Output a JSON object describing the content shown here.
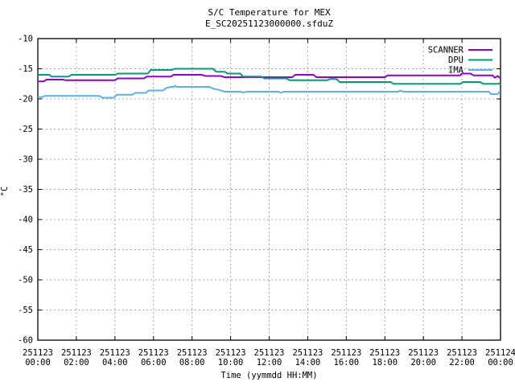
{
  "chart_data": {
    "type": "line",
    "title": "S/C Temperature for MEX",
    "subtitle": "E_SC20251123000000.sfduZ",
    "xlabel": "Time (yymmdd HH:MM)",
    "ylabel": "°C",
    "xlim": [
      0,
      24
    ],
    "ylim": [
      -60,
      -10
    ],
    "x_unit_hours_from": "251123 00:00",
    "grid": true,
    "legend_position": "top-right-inside",
    "colors": {
      "axis": "#000000",
      "grid": "#a9a9a9",
      "background": "#ffffff"
    },
    "yticks": [
      -10,
      -15,
      -20,
      -25,
      -30,
      -35,
      -40,
      -45,
      -50,
      -55,
      -60
    ],
    "xticks": [
      {
        "date": "251123",
        "time": "00:00",
        "hour": 0
      },
      {
        "date": "251123",
        "time": "02:00",
        "hour": 2
      },
      {
        "date": "251123",
        "time": "04:00",
        "hour": 4
      },
      {
        "date": "251123",
        "time": "06:00",
        "hour": 6
      },
      {
        "date": "251123",
        "time": "08:00",
        "hour": 8
      },
      {
        "date": "251123",
        "time": "10:00",
        "hour": 10
      },
      {
        "date": "251123",
        "time": "12:00",
        "hour": 12
      },
      {
        "date": "251123",
        "time": "14:00",
        "hour": 14
      },
      {
        "date": "251123",
        "time": "16:00",
        "hour": 16
      },
      {
        "date": "251123",
        "time": "18:00",
        "hour": 18
      },
      {
        "date": "251123",
        "time": "20:00",
        "hour": 20
      },
      {
        "date": "251123",
        "time": "22:00",
        "hour": 22
      },
      {
        "date": "251124",
        "time": "00:00",
        "hour": 24
      }
    ],
    "series": [
      {
        "name": "SCANNER",
        "color": "#9400d3",
        "points": [
          [
            0,
            -17.1
          ],
          [
            0.3,
            -17.1
          ],
          [
            0.45,
            -16.8
          ],
          [
            1.3,
            -16.8
          ],
          [
            1.45,
            -16.9
          ],
          [
            4.0,
            -16.9
          ],
          [
            4.15,
            -16.6
          ],
          [
            5.5,
            -16.6
          ],
          [
            5.65,
            -16.3
          ],
          [
            6.9,
            -16.3
          ],
          [
            7.05,
            -16.0
          ],
          [
            8.5,
            -16.0
          ],
          [
            8.7,
            -16.2
          ],
          [
            9.5,
            -16.2
          ],
          [
            9.7,
            -16.4
          ],
          [
            13.2,
            -16.4
          ],
          [
            13.35,
            -16.0
          ],
          [
            14.3,
            -16.0
          ],
          [
            14.45,
            -16.4
          ],
          [
            18.0,
            -16.4
          ],
          [
            18.15,
            -16.1
          ],
          [
            21.9,
            -16.1
          ],
          [
            22.0,
            -15.8
          ],
          [
            22.45,
            -15.8
          ],
          [
            22.6,
            -16.1
          ],
          [
            23.6,
            -16.1
          ],
          [
            23.7,
            -16.5
          ],
          [
            23.85,
            -16.2
          ],
          [
            24,
            -16.6
          ]
        ]
      },
      {
        "name": "DPU",
        "color": "#009e73",
        "points": [
          [
            0,
            -16.0
          ],
          [
            0.6,
            -16.0
          ],
          [
            0.7,
            -16.3
          ],
          [
            1.6,
            -16.3
          ],
          [
            1.75,
            -16.0
          ],
          [
            4.0,
            -16.0
          ],
          [
            4.15,
            -15.8
          ],
          [
            5.7,
            -15.8
          ],
          [
            5.85,
            -15.2
          ],
          [
            6.95,
            -15.2
          ],
          [
            7.1,
            -15.0
          ],
          [
            9.1,
            -15.0
          ],
          [
            9.25,
            -15.5
          ],
          [
            9.7,
            -15.5
          ],
          [
            9.85,
            -15.8
          ],
          [
            10.5,
            -15.8
          ],
          [
            10.65,
            -16.3
          ],
          [
            11.6,
            -16.3
          ],
          [
            11.75,
            -16.6
          ],
          [
            12.9,
            -16.6
          ],
          [
            13.05,
            -16.9
          ],
          [
            15.0,
            -16.9
          ],
          [
            15.15,
            -16.7
          ],
          [
            15.5,
            -16.7
          ],
          [
            15.65,
            -17.2
          ],
          [
            18.3,
            -17.2
          ],
          [
            18.45,
            -17.5
          ],
          [
            21.9,
            -17.5
          ],
          [
            22.05,
            -17.2
          ],
          [
            22.95,
            -17.2
          ],
          [
            23.1,
            -17.5
          ],
          [
            23.85,
            -17.5
          ],
          [
            24,
            -17.4
          ]
        ]
      },
      {
        "name": "IMA",
        "color": "#56b4e9",
        "points": [
          [
            0,
            -19.7
          ],
          [
            0.25,
            -19.7
          ],
          [
            0.35,
            -19.5
          ],
          [
            3.2,
            -19.5
          ],
          [
            3.35,
            -19.8
          ],
          [
            3.95,
            -19.8
          ],
          [
            4.1,
            -19.3
          ],
          [
            4.9,
            -19.3
          ],
          [
            5.05,
            -19.0
          ],
          [
            5.6,
            -19.0
          ],
          [
            5.75,
            -18.6
          ],
          [
            6.5,
            -18.6
          ],
          [
            6.65,
            -18.2
          ],
          [
            6.9,
            -18.0
          ],
          [
            7.05,
            -18.0
          ],
          [
            7.1,
            -17.8
          ],
          [
            7.2,
            -18.0
          ],
          [
            8.9,
            -18.0
          ],
          [
            9.1,
            -18.3
          ],
          [
            9.4,
            -18.5
          ],
          [
            9.7,
            -18.8
          ],
          [
            10.55,
            -18.8
          ],
          [
            10.65,
            -19.0
          ],
          [
            10.8,
            -18.8
          ],
          [
            12.5,
            -18.8
          ],
          [
            12.6,
            -19.0
          ],
          [
            12.75,
            -18.8
          ],
          [
            18.7,
            -18.8
          ],
          [
            18.8,
            -18.6
          ],
          [
            18.95,
            -18.8
          ],
          [
            23.4,
            -18.8
          ],
          [
            23.5,
            -19.2
          ],
          [
            23.85,
            -19.2
          ],
          [
            23.95,
            -18.8
          ],
          [
            24,
            -18.8
          ]
        ]
      }
    ]
  }
}
